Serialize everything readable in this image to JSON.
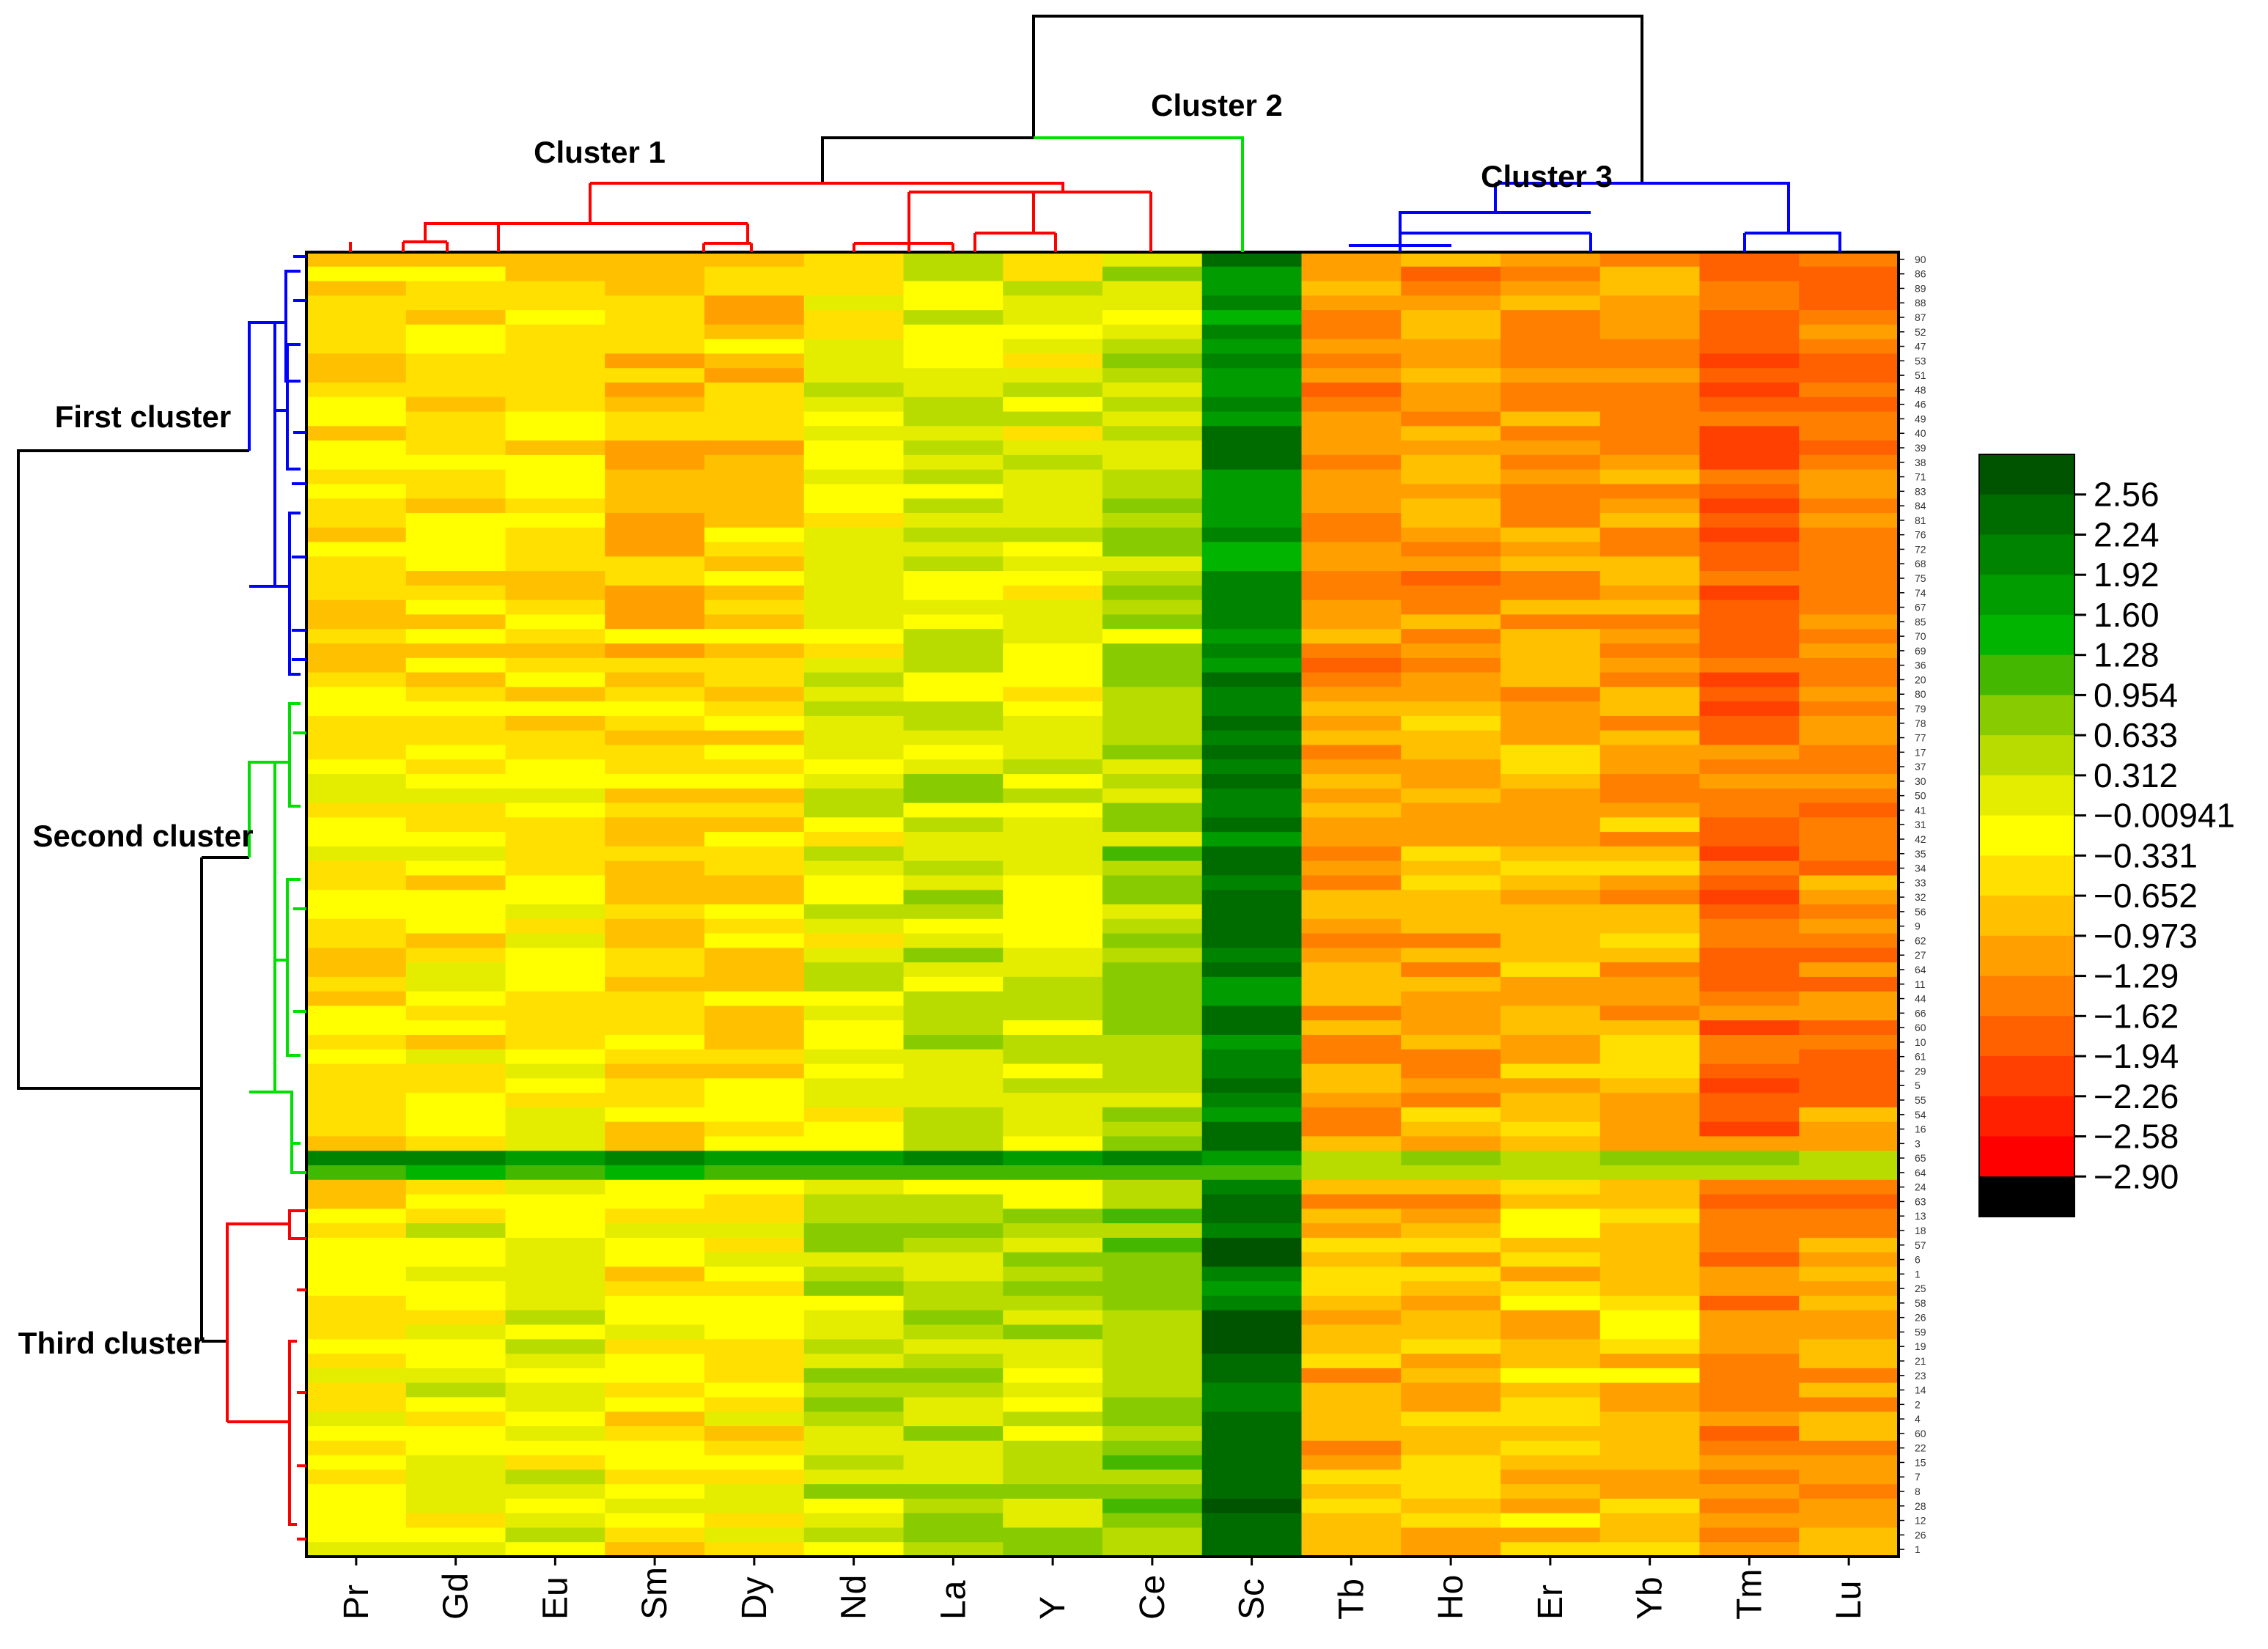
{
  "chart_data": {
    "type": "heatmap",
    "title": "",
    "columns": [
      "Pr",
      "Gd",
      "Eu",
      "Sm",
      "Dy",
      "Nd",
      "La",
      "Y",
      "Ce",
      "Sc",
      "Tb",
      "Ho",
      "Er",
      "Yb",
      "Tm",
      "Lu"
    ],
    "column_clusters": [
      {
        "label": "Cluster 1",
        "members": [
          "Pr",
          "Gd",
          "Eu",
          "Sm",
          "Dy",
          "Nd",
          "La",
          "Y",
          "Ce"
        ],
        "color": "#ff0000"
      },
      {
        "label": "Cluster 2",
        "members": [
          "Sc"
        ],
        "color": "#00e000"
      },
      {
        "label": "Cluster 3",
        "members": [
          "Tb",
          "Ho",
          "Er",
          "Yb",
          "Tm",
          "Lu"
        ],
        "color": "#0000ff"
      }
    ],
    "row_clusters": [
      {
        "label": "First cluster",
        "row_start": 0,
        "row_end": 30,
        "color": "#0000ff"
      },
      {
        "label": "Second cluster",
        "row_start": 31,
        "row_end": 65,
        "color": "#00e000"
      },
      {
        "label": "Third cluster",
        "row_start": 66,
        "row_end": 89,
        "color": "#ff0000"
      }
    ],
    "row_labels": [
      "90",
      "86",
      "89",
      "88",
      "87",
      "52",
      "47",
      "53",
      "51",
      "48",
      "46",
      "49",
      "40",
      "39",
      "38",
      "71",
      "83",
      "84",
      "81",
      "76",
      "72",
      "68",
      "75",
      "74",
      "67",
      "85",
      "70",
      "69",
      "36",
      "20",
      "80",
      "79",
      "78",
      "77",
      "17",
      "37",
      "30",
      "50",
      "41",
      "31",
      "42",
      "35",
      "34",
      "33",
      "32",
      "56",
      "9",
      "62",
      "27",
      "64",
      "11",
      "44",
      "66",
      "60",
      "10",
      "61",
      "29",
      "5",
      "55",
      "54",
      "16",
      "3",
      "65",
      "64",
      "24",
      "63",
      "13",
      "18",
      "57",
      "6",
      "1",
      "25",
      "58",
      "26",
      "59",
      "19",
      "21",
      "23",
      "14",
      "2",
      "4",
      "60",
      "22",
      "15",
      "7",
      "8",
      "28",
      "12",
      "26",
      "1"
    ],
    "color_scale": {
      "min": -2.9,
      "max": 2.56,
      "ticks": [
        2.56,
        2.24,
        1.92,
        1.6,
        1.28,
        0.954,
        0.633,
        0.312,
        -0.00941,
        -0.331,
        -0.652,
        -0.973,
        -1.29,
        -1.62,
        -1.94,
        -2.26,
        -2.58,
        -2.9
      ],
      "tick_labels": [
        "2.56",
        "2.24",
        "1.92",
        "1.60",
        "1.28",
        "0.954",
        "0.633",
        "0.312",
        "−0.00941",
        "−0.331",
        "−0.652",
        "−0.973",
        "−1.29",
        "−1.62",
        "−1.94",
        "−2.26",
        "−2.58",
        "−2.90"
      ],
      "colors": [
        "#005400",
        "#006c00",
        "#008400",
        "#009c00",
        "#00b400",
        "#44b800",
        "#88cc00",
        "#b8dc00",
        "#e4ec00",
        "#ffff00",
        "#ffe000",
        "#ffc000",
        "#ffa000",
        "#ff8000",
        "#ff6000",
        "#ff4000",
        "#ff2000",
        "#ff0000",
        "#000000"
      ]
    },
    "column_base_values": [
      -0.35,
      -0.3,
      -0.28,
      -0.55,
      -0.5,
      0.05,
      0.25,
      0.15,
      0.55,
      2.1,
      -1.15,
      -1.05,
      -0.95,
      -0.95,
      -1.6,
      -1.35
    ],
    "row_cluster_offsets": {
      "first": -0.15,
      "second": 0.0,
      "third": 0.25
    },
    "highlight_rows": {
      "62": 1.9,
      "63": 1.2
    }
  }
}
